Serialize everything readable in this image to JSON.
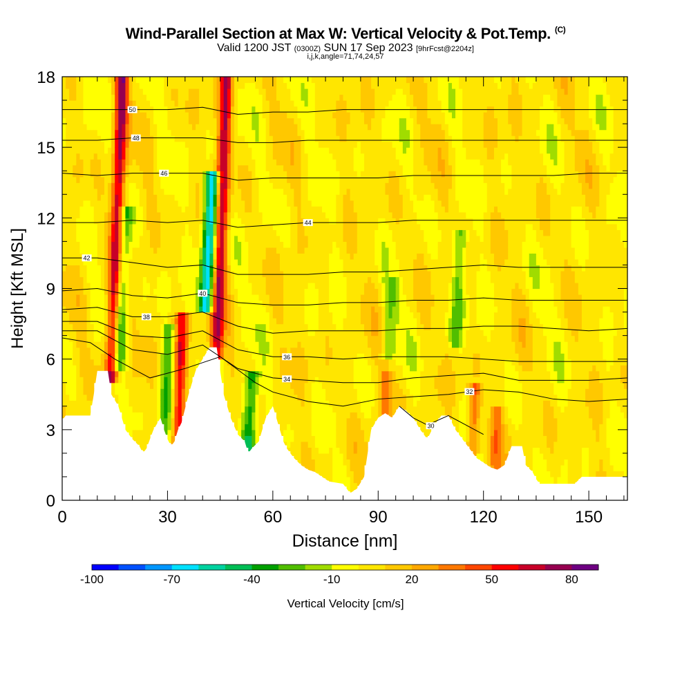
{
  "header": {
    "title": "Wind-Parallel Section at Max W: Vertical Velocity & Pot.Temp.",
    "copyright": "(C)",
    "valid_prefix": "Valid 1200 JST",
    "valid_utc": "(0300Z)",
    "valid_date": "SUN 17 Sep 2023",
    "forecast": "[9hrFcst@2204z]",
    "indices": "i,j,k,angle=71,74,24,57"
  },
  "chart_data": {
    "type": "heatmap",
    "xlabel": "Distance [nm]",
    "ylabel": "Height [Kft MSL]",
    "xlim": [
      0,
      161
    ],
    "ylim": [
      0,
      18
    ],
    "x_ticks": [
      0,
      30,
      60,
      90,
      120,
      150
    ],
    "y_ticks": [
      0,
      3,
      6,
      9,
      12,
      15,
      18
    ],
    "colorbar": {
      "label": "Vertical Velocity [cm/s]",
      "tick_labels": [
        "-100",
        "-70",
        "-40",
        "-10",
        "20",
        "50",
        "80"
      ],
      "levels": [
        -100,
        -90,
        -80,
        -70,
        -60,
        -50,
        -40,
        -30,
        -20,
        -10,
        0,
        10,
        20,
        30,
        40,
        50,
        60,
        70,
        80,
        90
      ],
      "colors": [
        "#0000ff",
        "#0050ff",
        "#0096ff",
        "#00e1ff",
        "#00d2a0",
        "#00be55",
        "#00a000",
        "#50be00",
        "#a0dc00",
        "#ffff00",
        "#ffe600",
        "#ffc800",
        "#ffa800",
        "#ff7800",
        "#ff4600",
        "#ff0000",
        "#c80028",
        "#960050",
        "#6e0082"
      ]
    },
    "updrafts": [
      {
        "x": 14,
        "top": 17.5,
        "base": 5.5,
        "peak": 70
      },
      {
        "x": 33,
        "top": 7.5,
        "base": 3,
        "peak": 55
      },
      {
        "x": 44,
        "top": 18,
        "base": 6.5,
        "peak": 65
      },
      {
        "x": 92,
        "top": 5.5,
        "base": 3.5,
        "peak": 30
      },
      {
        "x": 117,
        "top": 4.5,
        "base": 2.5,
        "peak": 35
      },
      {
        "x": 123,
        "top": 3.5,
        "base": 1.5,
        "peak": 30
      }
    ],
    "downdrafts": [
      {
        "x": 41,
        "top": 13.5,
        "base": 8.5,
        "peak": -75
      },
      {
        "x": 53,
        "top": 5,
        "base": 2.3,
        "peak": -45
      },
      {
        "x": 16,
        "top": 12,
        "base": 6,
        "peak": -35
      },
      {
        "x": 29,
        "top": 7,
        "base": 3,
        "peak": -30
      },
      {
        "x": 112,
        "top": 11,
        "base": 7,
        "peak": -25
      },
      {
        "x": 93,
        "top": 9,
        "base": 6,
        "peak": -20
      }
    ],
    "terrain_kft": [
      [
        0,
        3.4
      ],
      [
        1,
        3.6
      ],
      [
        8,
        3.6
      ],
      [
        9,
        4.5
      ],
      [
        10,
        5.5
      ],
      [
        13,
        5.5
      ],
      [
        14,
        4.5
      ],
      [
        16,
        4.0
      ],
      [
        18,
        3.0
      ],
      [
        20,
        2.6
      ],
      [
        22,
        2.3
      ],
      [
        23,
        2.0
      ],
      [
        24,
        2.2
      ],
      [
        26,
        3.0
      ],
      [
        28,
        3.5
      ],
      [
        29,
        3.0
      ],
      [
        30,
        2.6
      ],
      [
        31,
        2.3
      ],
      [
        32,
        2.5
      ],
      [
        33,
        3.0
      ],
      [
        34,
        3.3
      ],
      [
        36,
        4.5
      ],
      [
        38,
        5.5
      ],
      [
        40,
        6.0
      ],
      [
        42,
        6.5
      ],
      [
        44,
        6.5
      ],
      [
        46,
        4.5
      ],
      [
        48,
        3.5
      ],
      [
        50,
        2.8
      ],
      [
        52,
        2.5
      ],
      [
        53,
        2.0
      ],
      [
        54,
        2.2
      ],
      [
        56,
        2.5
      ],
      [
        58,
        3.5
      ],
      [
        60,
        4.0
      ],
      [
        62,
        3.0
      ],
      [
        63,
        2.5
      ],
      [
        64,
        2.2
      ],
      [
        66,
        1.8
      ],
      [
        68,
        1.5
      ],
      [
        70,
        1.3
      ],
      [
        72,
        1.2
      ],
      [
        74,
        1.0
      ],
      [
        76,
        0.8
      ],
      [
        80,
        0.7
      ],
      [
        82,
        0.3
      ],
      [
        84,
        0.5
      ],
      [
        86,
        1.0
      ],
      [
        87,
        2.0
      ],
      [
        88,
        3.0
      ],
      [
        90,
        3.5
      ],
      [
        92,
        3.7
      ],
      [
        94,
        3.5
      ],
      [
        96,
        4.0
      ],
      [
        98,
        3.8
      ],
      [
        100,
        3.5
      ],
      [
        102,
        3.0
      ],
      [
        104,
        2.6
      ],
      [
        106,
        3.2
      ],
      [
        108,
        3.6
      ],
      [
        110,
        3.6
      ],
      [
        112,
        3.0
      ],
      [
        114,
        2.6
      ],
      [
        116,
        2.2
      ],
      [
        118,
        1.8
      ],
      [
        120,
        1.6
      ],
      [
        122,
        1.4
      ],
      [
        124,
        1.3
      ],
      [
        126,
        1.5
      ],
      [
        128,
        2.3
      ],
      [
        131,
        2.3
      ],
      [
        132,
        1.5
      ],
      [
        134,
        1.2
      ],
      [
        135,
        0.9
      ],
      [
        136,
        0.7
      ],
      [
        146,
        0.7
      ],
      [
        148,
        1.0
      ],
      [
        156,
        1.0
      ],
      [
        161,
        1.0
      ]
    ],
    "theta_contours": [
      {
        "label": "30",
        "label_x": 105,
        "pts": [
          [
            96,
            3.6
          ],
          [
            100,
            3.5
          ],
          [
            104,
            3.2
          ],
          [
            110,
            3.0
          ],
          [
            120,
            2.8
          ]
        ]
      },
      {
        "label": "32",
        "label_x": 116,
        "pts": [
          [
            0,
            6.9
          ],
          [
            8,
            6.7
          ],
          [
            15,
            6.0
          ],
          [
            25,
            5.2
          ],
          [
            35,
            5.6
          ],
          [
            45,
            6.1
          ],
          [
            55,
            5.0
          ],
          [
            60,
            4.6
          ],
          [
            70,
            4.2
          ],
          [
            80,
            4.0
          ],
          [
            90,
            4.3
          ],
          [
            100,
            4.4
          ],
          [
            110,
            4.5
          ],
          [
            120,
            4.7
          ],
          [
            130,
            4.6
          ],
          [
            140,
            4.3
          ],
          [
            150,
            4.2
          ],
          [
            161,
            4.3
          ]
        ]
      },
      {
        "label": "34",
        "label_x": 64,
        "pts": [
          [
            0,
            7.2
          ],
          [
            10,
            7.2
          ],
          [
            20,
            6.4
          ],
          [
            30,
            6.2
          ],
          [
            40,
            6.6
          ],
          [
            50,
            5.6
          ],
          [
            60,
            5.2
          ],
          [
            70,
            5.1
          ],
          [
            80,
            5.0
          ],
          [
            90,
            5.0
          ],
          [
            100,
            5.2
          ],
          [
            110,
            5.3
          ],
          [
            120,
            5.4
          ],
          [
            130,
            5.1
          ],
          [
            140,
            5.1
          ],
          [
            150,
            5.1
          ],
          [
            161,
            5.2
          ]
        ]
      },
      {
        "label": "36",
        "label_x": 64,
        "pts": [
          [
            0,
            7.6
          ],
          [
            10,
            7.6
          ],
          [
            20,
            7.0
          ],
          [
            30,
            6.9
          ],
          [
            40,
            7.2
          ],
          [
            50,
            6.4
          ],
          [
            60,
            6.1
          ],
          [
            70,
            6.1
          ],
          [
            80,
            6.0
          ],
          [
            90,
            6.1
          ],
          [
            100,
            6.1
          ],
          [
            110,
            6.1
          ],
          [
            120,
            6.0
          ],
          [
            130,
            5.9
          ],
          [
            140,
            5.9
          ],
          [
            150,
            5.9
          ],
          [
            161,
            5.9
          ]
        ]
      },
      {
        "label": "38",
        "label_x": 24,
        "pts": [
          [
            0,
            8.1
          ],
          [
            10,
            8.2
          ],
          [
            20,
            7.8
          ],
          [
            30,
            7.8
          ],
          [
            40,
            8.0
          ],
          [
            50,
            7.4
          ],
          [
            60,
            7.1
          ],
          [
            70,
            7.2
          ],
          [
            80,
            7.2
          ],
          [
            90,
            7.2
          ],
          [
            100,
            7.3
          ],
          [
            110,
            7.3
          ],
          [
            120,
            7.4
          ],
          [
            130,
            7.4
          ],
          [
            140,
            7.3
          ],
          [
            150,
            7.2
          ],
          [
            161,
            7.3
          ]
        ]
      },
      {
        "label": "40",
        "label_x": 40,
        "pts": [
          [
            0,
            8.9
          ],
          [
            10,
            9.0
          ],
          [
            20,
            8.7
          ],
          [
            30,
            8.6
          ],
          [
            40,
            8.8
          ],
          [
            50,
            8.4
          ],
          [
            60,
            8.3
          ],
          [
            70,
            8.3
          ],
          [
            80,
            8.4
          ],
          [
            90,
            8.4
          ],
          [
            100,
            8.5
          ],
          [
            110,
            8.5
          ],
          [
            120,
            8.6
          ],
          [
            130,
            8.5
          ],
          [
            140,
            8.5
          ],
          [
            150,
            8.5
          ],
          [
            161,
            8.5
          ]
        ]
      },
      {
        "label": "42",
        "label_x": 7,
        "pts": [
          [
            0,
            10.3
          ],
          [
            10,
            10.3
          ],
          [
            20,
            10.1
          ],
          [
            30,
            9.9
          ],
          [
            40,
            10.0
          ],
          [
            50,
            9.6
          ],
          [
            60,
            9.6
          ],
          [
            70,
            9.6
          ],
          [
            80,
            9.7
          ],
          [
            90,
            9.7
          ],
          [
            100,
            9.8
          ],
          [
            110,
            9.9
          ],
          [
            120,
            10.0
          ],
          [
            130,
            9.9
          ],
          [
            140,
            9.9
          ],
          [
            150,
            9.9
          ],
          [
            161,
            9.9
          ]
        ]
      },
      {
        "label": "44",
        "label_x": 70,
        "pts": [
          [
            0,
            11.8
          ],
          [
            10,
            11.8
          ],
          [
            20,
            11.9
          ],
          [
            30,
            11.8
          ],
          [
            40,
            11.9
          ],
          [
            50,
            11.6
          ],
          [
            60,
            11.7
          ],
          [
            70,
            11.8
          ],
          [
            80,
            11.8
          ],
          [
            90,
            11.8
          ],
          [
            100,
            11.9
          ],
          [
            110,
            11.9
          ],
          [
            120,
            11.9
          ],
          [
            130,
            11.9
          ],
          [
            140,
            11.9
          ],
          [
            150,
            11.9
          ],
          [
            161,
            11.9
          ]
        ]
      },
      {
        "label": "46",
        "label_x": 29,
        "pts": [
          [
            0,
            13.9
          ],
          [
            10,
            13.8
          ],
          [
            20,
            13.9
          ],
          [
            30,
            13.9
          ],
          [
            40,
            13.9
          ],
          [
            50,
            13.6
          ],
          [
            60,
            13.7
          ],
          [
            70,
            13.7
          ],
          [
            80,
            13.7
          ],
          [
            90,
            13.7
          ],
          [
            100,
            13.8
          ],
          [
            110,
            13.8
          ],
          [
            120,
            13.8
          ],
          [
            130,
            13.8
          ],
          [
            140,
            13.8
          ],
          [
            150,
            13.9
          ],
          [
            161,
            13.9
          ]
        ]
      },
      {
        "label": "48",
        "label_x": 21,
        "pts": [
          [
            0,
            15.3
          ],
          [
            10,
            15.3
          ],
          [
            20,
            15.4
          ],
          [
            30,
            15.4
          ],
          [
            40,
            15.4
          ],
          [
            50,
            15.2
          ],
          [
            60,
            15.2
          ],
          [
            70,
            15.3
          ],
          [
            80,
            15.3
          ],
          [
            90,
            15.3
          ],
          [
            100,
            15.3
          ],
          [
            110,
            15.3
          ],
          [
            120,
            15.3
          ],
          [
            130,
            15.3
          ],
          [
            140,
            15.3
          ],
          [
            150,
            15.3
          ],
          [
            161,
            15.3
          ]
        ]
      },
      {
        "label": "50",
        "label_x": 20,
        "pts": [
          [
            0,
            16.6
          ],
          [
            10,
            16.6
          ],
          [
            20,
            16.6
          ],
          [
            30,
            16.6
          ],
          [
            40,
            16.7
          ],
          [
            50,
            16.4
          ],
          [
            60,
            16.5
          ],
          [
            70,
            16.5
          ],
          [
            80,
            16.6
          ],
          [
            90,
            16.6
          ],
          [
            100,
            16.6
          ],
          [
            110,
            16.6
          ],
          [
            120,
            16.6
          ],
          [
            130,
            16.6
          ],
          [
            140,
            16.6
          ],
          [
            150,
            16.6
          ],
          [
            161,
            16.6
          ]
        ]
      }
    ]
  }
}
